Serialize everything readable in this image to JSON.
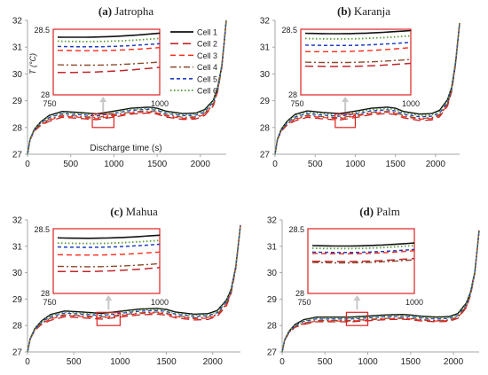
{
  "colors": {
    "axis": "#a6a6a6",
    "highlight": "#e02020",
    "arrow": "#c8c8c8",
    "text": "#222222",
    "series": [
      "#111111",
      "#c0272d",
      "#ff2a1a",
      "#8c4a2a",
      "#1f3fbf",
      "#5a9e3a"
    ]
  },
  "series_styles": [
    "solid",
    "long-dash",
    "dash",
    "dash-dot",
    "short-dash",
    "dot"
  ],
  "chart_data": [
    {
      "type": "line",
      "label": "(a)",
      "title": "Jatropha",
      "xlabel": "Discharge time (s)",
      "ylabel": "T (°C)",
      "xlim": [
        0,
        2300
      ],
      "ylim": [
        27,
        32
      ],
      "xticks": [
        "0",
        "500",
        "1000",
        "1500",
        "2000"
      ],
      "yticks": [
        "27",
        "28",
        "29",
        "30",
        "31",
        "32"
      ],
      "grid": false,
      "legend": "inside inset, right",
      "base_curve": {
        "x": [
          0,
          30,
          80,
          150,
          250,
          400,
          600,
          800,
          1000,
          1200,
          1400,
          1500,
          1600,
          1800,
          1950,
          2050,
          2150,
          2200,
          2250,
          2300
        ],
        "y": [
          27.0,
          27.55,
          27.9,
          28.13,
          28.33,
          28.48,
          28.44,
          28.39,
          28.49,
          28.6,
          28.64,
          28.6,
          28.49,
          28.4,
          28.42,
          28.55,
          28.9,
          29.4,
          30.3,
          32.0
        ]
      },
      "series": [
        {
          "name": "Cell 1",
          "offset": 0.12
        },
        {
          "name": "Cell 2",
          "offset": -0.1
        },
        {
          "name": "Cell 3",
          "offset": -0.06
        },
        {
          "name": "Cell 4",
          "offset": -0.02
        },
        {
          "name": "Cell 5",
          "offset": 0.04
        },
        {
          "name": "Cell 6",
          "offset": 0.08
        }
      ],
      "highlight": {
        "x": [
          750,
          1000
        ],
        "y": [
          28.0,
          28.5
        ]
      },
      "inset": {
        "xlim": [
          750,
          1000
        ],
        "ylim": [
          28,
          28.5
        ],
        "xticks": [
          "750",
          "1000"
        ],
        "yticks": [
          "28",
          "28.5"
        ],
        "series_y": [
          [
            28.44,
            28.47
          ],
          [
            28.17,
            28.21
          ],
          [
            28.34,
            28.36
          ],
          [
            28.23,
            28.25
          ],
          [
            28.37,
            28.39
          ],
          [
            28.41,
            28.43
          ]
        ]
      }
    },
    {
      "type": "line",
      "label": "(b)",
      "title": "Karanja",
      "xlabel": "",
      "ylabel": "",
      "xlim": [
        0,
        2300
      ],
      "ylim": [
        27,
        32
      ],
      "xticks": [
        "0",
        "500",
        "1000",
        "1500",
        "2000"
      ],
      "yticks": [
        "27",
        "28",
        "29",
        "30",
        "31",
        "32"
      ],
      "grid": false,
      "legend": "",
      "base_curve": {
        "x": [
          0,
          30,
          80,
          150,
          250,
          400,
          600,
          800,
          1000,
          1200,
          1400,
          1500,
          1600,
          1800,
          1950,
          2050,
          2150,
          2200,
          2250,
          2300
        ],
        "y": [
          27.0,
          27.55,
          27.9,
          28.15,
          28.35,
          28.48,
          28.42,
          28.38,
          28.47,
          28.58,
          28.62,
          28.58,
          28.46,
          28.36,
          28.38,
          28.5,
          28.9,
          29.4,
          30.4,
          31.9
        ]
      },
      "series": [
        {
          "name": "Cell 1",
          "offset": 0.14
        },
        {
          "name": "Cell 2",
          "offset": -0.1
        },
        {
          "name": "Cell 3",
          "offset": -0.05
        },
        {
          "name": "Cell 4",
          "offset": -0.02
        },
        {
          "name": "Cell 5",
          "offset": 0.04
        },
        {
          "name": "Cell 6",
          "offset": 0.09
        }
      ],
      "highlight": {
        "x": [
          750,
          1000
        ],
        "y": [
          28.0,
          28.5
        ]
      },
      "inset": {
        "xlim": [
          750,
          1000
        ],
        "ylim": [
          28,
          28.5
        ],
        "xticks": [
          "750",
          "1000"
        ],
        "yticks": [
          "28",
          "28.5"
        ],
        "series_y": [
          [
            28.47,
            28.49
          ],
          [
            28.22,
            28.24
          ],
          [
            28.33,
            28.36
          ],
          [
            28.25,
            28.27
          ],
          [
            28.38,
            28.4
          ],
          [
            28.43,
            28.45
          ]
        ]
      }
    },
    {
      "type": "line",
      "label": "(c)",
      "title": "Mahua",
      "xlabel": "",
      "ylabel": "",
      "xlim": [
        0,
        2300
      ],
      "ylim": [
        27,
        32
      ],
      "xticks": [
        "0",
        "500",
        "1000",
        "1500",
        "2000"
      ],
      "yticks": [
        "27",
        "28",
        "29",
        "30",
        "31",
        "32"
      ],
      "grid": false,
      "legend": "",
      "base_curve": {
        "x": [
          0,
          30,
          80,
          150,
          250,
          400,
          600,
          800,
          1000,
          1200,
          1400,
          1500,
          1600,
          1800,
          1950,
          2050,
          2150,
          2200,
          2250,
          2300
        ],
        "y": [
          27.0,
          27.5,
          27.85,
          28.1,
          28.3,
          28.43,
          28.39,
          28.34,
          28.42,
          28.5,
          28.53,
          28.49,
          28.39,
          28.31,
          28.33,
          28.45,
          28.85,
          29.3,
          30.2,
          31.8
        ]
      },
      "series": [
        {
          "name": "Cell 1",
          "offset": 0.12
        },
        {
          "name": "Cell 2",
          "offset": -0.1
        },
        {
          "name": "Cell 3",
          "offset": -0.05
        },
        {
          "name": "Cell 4",
          "offset": -0.02
        },
        {
          "name": "Cell 5",
          "offset": 0.04
        },
        {
          "name": "Cell 6",
          "offset": 0.08
        }
      ],
      "highlight": {
        "x": [
          750,
          1000
        ],
        "y": [
          28.0,
          28.5
        ]
      },
      "inset": {
        "xlim": [
          750,
          1000
        ],
        "ylim": [
          28,
          28.5
        ],
        "xticks": [
          "750",
          "1000"
        ],
        "yticks": [
          "28",
          "28.5"
        ],
        "series_y": [
          [
            28.43,
            28.45
          ],
          [
            28.17,
            28.2
          ],
          [
            28.3,
            28.32
          ],
          [
            28.21,
            28.23
          ],
          [
            28.36,
            28.38
          ],
          [
            28.39,
            28.41
          ]
        ]
      }
    },
    {
      "type": "line",
      "label": "(d)",
      "title": "Palm",
      "xlabel": "",
      "ylabel": "",
      "xlim": [
        0,
        2300
      ],
      "ylim": [
        27,
        32
      ],
      "xticks": [
        "0",
        "500",
        "1000",
        "1500",
        "2000"
      ],
      "yticks": [
        "27",
        "28",
        "29",
        "30",
        "31",
        "32"
      ],
      "grid": false,
      "legend": "",
      "base_curve": {
        "x": [
          0,
          30,
          80,
          150,
          250,
          400,
          600,
          800,
          1000,
          1200,
          1400,
          1500,
          1600,
          1800,
          1950,
          2050,
          2150,
          2200,
          2250,
          2300
        ],
        "y": [
          27.0,
          27.45,
          27.75,
          27.98,
          28.12,
          28.22,
          28.22,
          28.22,
          28.26,
          28.3,
          28.32,
          28.3,
          28.26,
          28.22,
          28.24,
          28.35,
          28.75,
          29.2,
          30.0,
          31.6
        ]
      },
      "series": [
        {
          "name": "Cell 1",
          "offset": 0.1
        },
        {
          "name": "Cell 2",
          "offset": -0.08
        },
        {
          "name": "Cell 3",
          "offset": -0.05
        },
        {
          "name": "Cell 4",
          "offset": -0.03
        },
        {
          "name": "Cell 5",
          "offset": 0.03
        },
        {
          "name": "Cell 6",
          "offset": 0.06
        }
      ],
      "highlight": {
        "x": [
          750,
          1000
        ],
        "y": [
          28.0,
          28.5
        ]
      },
      "inset": {
        "xlim": [
          750,
          1000
        ],
        "ylim": [
          28,
          28.5
        ],
        "xticks": [
          "750",
          "1000"
        ],
        "yticks": [
          "28",
          "28.5"
        ],
        "series_y": [
          [
            28.37,
            28.39
          ],
          [
            28.25,
            28.27
          ],
          [
            28.31,
            28.33
          ],
          [
            28.24,
            28.26
          ],
          [
            28.32,
            28.34
          ],
          [
            28.35,
            28.37
          ]
        ]
      }
    }
  ]
}
